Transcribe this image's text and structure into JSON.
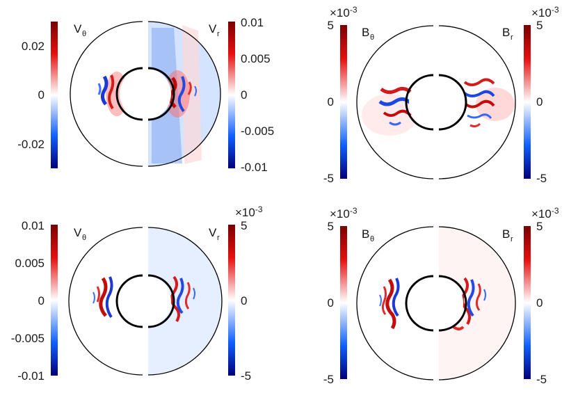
{
  "panels": [
    {
      "left_label": "V",
      "left_sub": "θ",
      "right_label": "V",
      "right_sub": "r",
      "left_bar": {
        "ticks": [
          "0.02",
          "0",
          "-0.02"
        ],
        "exponent": ""
      },
      "right_bar": {
        "ticks": [
          "0.01",
          "0.005",
          "0",
          "-0.005",
          "-0.01"
        ],
        "exponent": ""
      },
      "field": "velocity-top"
    },
    {
      "left_label": "B",
      "left_sub": "θ",
      "right_label": "B",
      "right_sub": "r",
      "left_bar": {
        "ticks": [
          "5",
          "0",
          "-5"
        ],
        "exponent": "×10-3",
        "exp_base": "×10",
        "exp_power": "-3"
      },
      "right_bar": {
        "ticks": [
          "5",
          "0",
          "-5"
        ],
        "exponent": "×10-3",
        "exp_base": "×10",
        "exp_power": "-3"
      },
      "field": "magnetic-top"
    },
    {
      "left_label": "V",
      "left_sub": "θ",
      "right_label": "V",
      "right_sub": "r",
      "left_bar": {
        "ticks": [
          "0.01",
          "0.005",
          "0",
          "-0.005",
          "-0.01"
        ],
        "exponent": ""
      },
      "right_bar": {
        "ticks": [
          "5",
          "0",
          "-5"
        ],
        "exponent": "×10-3",
        "exp_base": "×10",
        "exp_power": "-3"
      },
      "field": "velocity-bottom"
    },
    {
      "left_label": "B",
      "left_sub": "θ",
      "right_label": "B",
      "right_sub": "r",
      "left_bar": {
        "ticks": [
          "5",
          "0",
          "-5"
        ],
        "exponent": "×10-3",
        "exp_base": "×10",
        "exp_power": "-3"
      },
      "right_bar": {
        "ticks": [
          "5",
          "0",
          "-5"
        ],
        "exponent": "×10-3",
        "exp_base": "×10",
        "exp_power": "-3"
      },
      "field": "magnetic-bottom"
    }
  ],
  "colors": {
    "max": "#7a0000",
    "pos": "#ff1a1a",
    "zero": "#ffffff",
    "neg": "#1a6cff",
    "min": "#00007a"
  }
}
